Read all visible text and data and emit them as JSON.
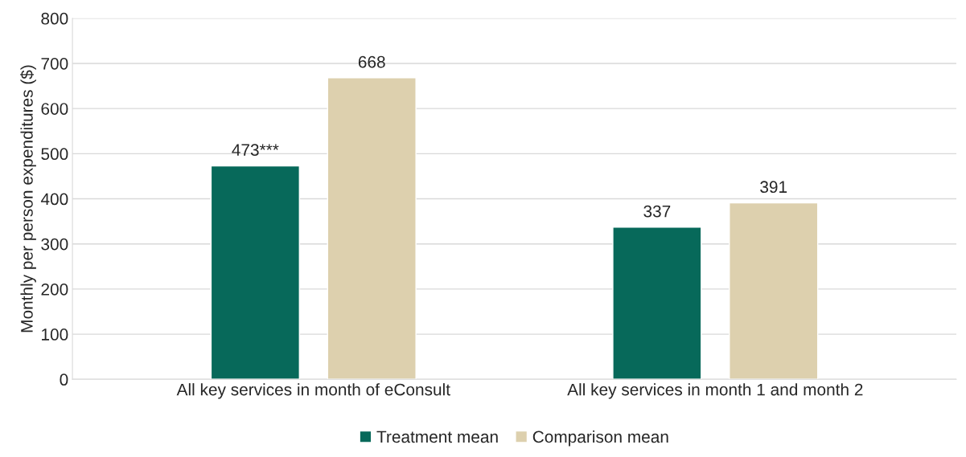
{
  "chart_data": {
    "type": "bar",
    "ylabel": "Monthly per person expenditures ($)",
    "categories": [
      "All key services in month of eConsult",
      "All key services in month 1 and month 2"
    ],
    "series": [
      {
        "name": "Treatment mean",
        "color": "#07695a",
        "values": [
          473,
          337
        ],
        "value_labels": [
          "473***",
          "337"
        ]
      },
      {
        "name": "Comparison mean",
        "color": "#ddd0ae",
        "values": [
          668,
          391
        ],
        "value_labels": [
          "668",
          "391"
        ]
      }
    ],
    "ylim": [
      0,
      800
    ],
    "yticks": [
      0,
      100,
      200,
      300,
      400,
      500,
      600,
      700,
      800
    ],
    "grid": "y",
    "legend": "bottom"
  }
}
